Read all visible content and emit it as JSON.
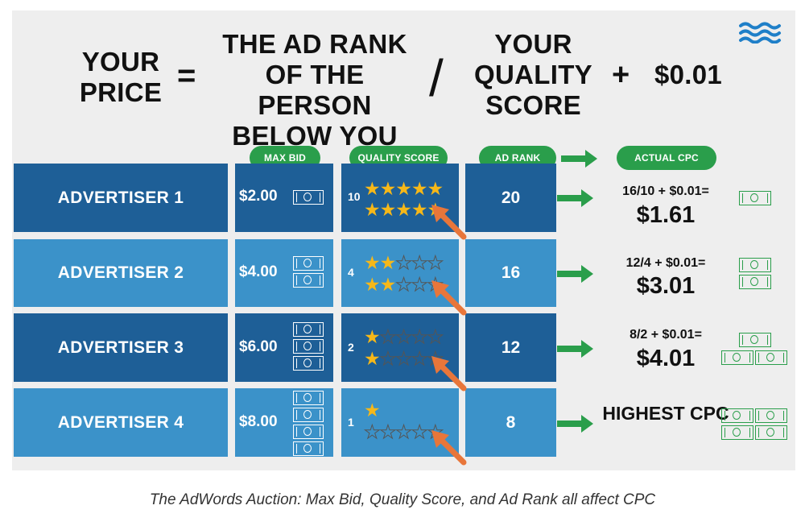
{
  "formula": {
    "lhs": "YOUR PRICE",
    "equals": "=",
    "term1": "THE AD RANK OF THE PERSON BELOW YOU",
    "divide": "/",
    "term2": "YOUR QUALITY SCORE",
    "plus": "+",
    "addend": "$0.01"
  },
  "headers": {
    "max_bid": "MAX BID",
    "quality_score": "QUALITY SCORE",
    "ad_rank": "AD RANK",
    "actual_cpc": "ACTUAL CPC"
  },
  "rows": [
    {
      "advertiser": "ADVERTISER 1",
      "max_bid": "$2.00",
      "bill_count": 1,
      "quality_score": "10",
      "stars_filled": 10,
      "ad_rank": "20",
      "cpc_formula": "16/10 + $0.01=",
      "cpc_value": "$1.61",
      "cpc_bills": 1
    },
    {
      "advertiser": "ADVERTISER 2",
      "max_bid": "$4.00",
      "bill_count": 2,
      "quality_score": "4",
      "stars_filled": 4,
      "ad_rank": "16",
      "cpc_formula": "12/4 + $0.01=",
      "cpc_value": "$3.01",
      "cpc_bills": 2
    },
    {
      "advertiser": "ADVERTISER 3",
      "max_bid": "$6.00",
      "bill_count": 3,
      "quality_score": "2",
      "stars_filled": 2,
      "ad_rank": "12",
      "cpc_formula": "8/2 + $0.01=",
      "cpc_value": "$4.01",
      "cpc_bills": 3
    },
    {
      "advertiser": "ADVERTISER 4",
      "max_bid": "$8.00",
      "bill_count": 4,
      "quality_score": "1",
      "stars_filled": 1,
      "ad_rank": "8",
      "cpc_formula": "",
      "cpc_value": "HIGHEST CPC",
      "cpc_bills": 4
    }
  ],
  "colors": {
    "dark_row": "#1e5f97",
    "light_row": "#3b92c9",
    "green": "#2a9e4b",
    "star": "#f6b819",
    "orange_arrow": "#e8763a"
  },
  "icons": {
    "logo": "wave-logo-icon",
    "money": "dollar-bill-icon",
    "star": "star-icon"
  },
  "caption": "The AdWords Auction: Max Bid, Quality Score, and Ad Rank all affect CPC"
}
